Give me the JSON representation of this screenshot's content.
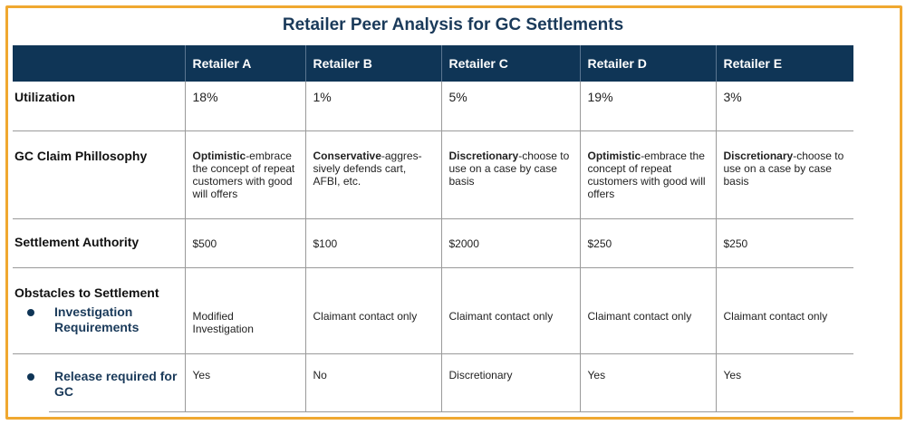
{
  "title": "Retailer Peer Analysis for GC Settlements",
  "accent_border_color": "#f0a830",
  "header_color": "#0f3556",
  "columns": [
    "Retailer A",
    "Retailer B",
    "Retailer C",
    "Retailer D",
    "Retailer E"
  ],
  "rows": {
    "utilization": {
      "label": "Utilization",
      "values": [
        "18%",
        "1%",
        "5%",
        "19%",
        "3%"
      ]
    },
    "philosophy": {
      "label": "GC Claim Phillosophy",
      "values": [
        {
          "bold": "Optimistic",
          "rest": "-embrace the concept of repeat customers with good will offers"
        },
        {
          "bold": "Conservative",
          "rest": "-aggres-sively defends cart, AFBI, etc."
        },
        {
          "bold": "Discretionary",
          "rest": "-choose to use on a case by case basis"
        },
        {
          "bold": "Optimistic",
          "rest": "-embrace the concept of repeat customers with good will offers"
        },
        {
          "bold": "Discretionary",
          "rest": "-choose to use on a case by case basis"
        }
      ]
    },
    "authority": {
      "label": "Settlement Authority",
      "values": [
        "$500",
        "$100",
        "$2000",
        "$250",
        "$250"
      ]
    },
    "obstacles": {
      "label": "Obstacles to Settlement"
    },
    "investigation": {
      "label": "Investigation Requirements",
      "values": [
        "Modified Investigation",
        "Claimant contact only",
        "Claimant contact only",
        "Claimant contact only",
        "Claimant contact only"
      ]
    },
    "release": {
      "label": "Release required for GC",
      "values": [
        "Yes",
        "No",
        "Discretionary",
        "Yes",
        "Yes"
      ]
    }
  }
}
